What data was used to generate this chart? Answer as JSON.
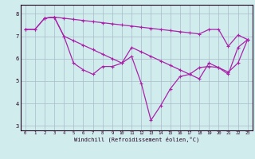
{
  "line1_x": [
    0,
    1,
    2,
    3,
    4,
    5,
    6,
    7,
    8,
    9,
    10,
    11,
    12,
    13,
    14,
    15,
    16,
    17,
    18,
    19,
    20,
    21,
    22,
    23
  ],
  "line1_y": [
    7.3,
    7.3,
    7.8,
    7.85,
    7.8,
    7.75,
    7.7,
    7.65,
    7.6,
    7.55,
    7.5,
    7.45,
    7.4,
    7.35,
    7.3,
    7.25,
    7.2,
    7.15,
    7.1,
    7.3,
    7.3,
    6.55,
    7.05,
    6.85
  ],
  "line2_x": [
    0,
    1,
    2,
    3,
    4,
    5,
    6,
    7,
    8,
    9,
    10,
    11,
    12,
    13,
    14,
    15,
    16,
    17,
    18,
    19,
    20,
    21,
    22,
    23
  ],
  "line2_y": [
    7.3,
    7.3,
    7.8,
    7.85,
    7.0,
    6.8,
    6.6,
    6.4,
    6.2,
    6.0,
    5.8,
    6.5,
    6.3,
    6.1,
    5.9,
    5.7,
    5.5,
    5.3,
    5.1,
    5.8,
    5.6,
    5.4,
    5.8,
    6.85
  ],
  "line3_x": [
    2,
    3,
    4,
    5,
    6,
    7,
    8,
    9,
    10,
    11,
    12,
    13,
    14,
    15,
    16,
    17,
    18,
    19,
    20,
    21,
    22,
    23
  ],
  "line3_y": [
    7.8,
    7.85,
    7.0,
    5.8,
    5.5,
    5.3,
    5.65,
    5.65,
    5.8,
    6.1,
    4.9,
    3.25,
    3.9,
    4.65,
    5.2,
    5.3,
    5.6,
    5.65,
    5.6,
    5.3,
    6.5,
    6.85
  ],
  "color": "#aa22aa",
  "bg_color": "#d0ecec",
  "xlabel": "Windchill (Refroidissement éolien,°C)",
  "ylim": [
    2.8,
    8.4
  ],
  "xlim": [
    -0.5,
    23.5
  ],
  "yticks": [
    3,
    4,
    5,
    6,
    7,
    8
  ],
  "xticks": [
    0,
    1,
    2,
    3,
    4,
    5,
    6,
    7,
    8,
    9,
    10,
    11,
    12,
    13,
    14,
    15,
    16,
    17,
    18,
    19,
    20,
    21,
    22,
    23
  ]
}
